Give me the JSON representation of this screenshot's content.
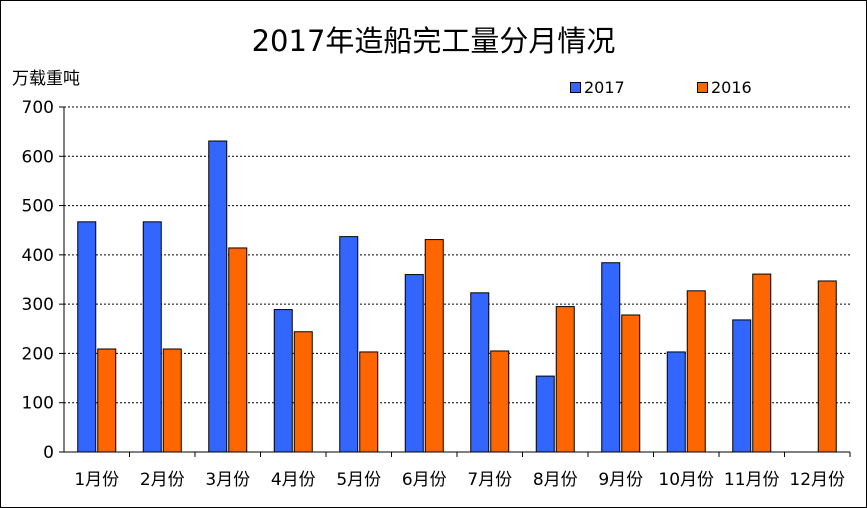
{
  "chart_data": {
    "type": "bar",
    "title": "2017年造船完工量分月情况",
    "ylabel": "万载重吨",
    "xlabel": "",
    "ylim": [
      0,
      700
    ],
    "yticks": [
      0,
      100,
      200,
      300,
      400,
      500,
      600,
      700
    ],
    "grid": true,
    "legend_position": "top-right",
    "categories": [
      "1月份",
      "2月份",
      "3月份",
      "4月份",
      "5月份",
      "6月份",
      "7月份",
      "8月份",
      "9月份",
      "10月份",
      "11月份",
      "12月份"
    ],
    "series": [
      {
        "name": "2017",
        "color": "#3366FF",
        "values": [
          467,
          467,
          631,
          289,
          437,
          360,
          323,
          154,
          384,
          203,
          268,
          null
        ]
      },
      {
        "name": "2016",
        "color": "#FF6600",
        "values": [
          209,
          209,
          414,
          244,
          203,
          431,
          205,
          295,
          278,
          327,
          361,
          347
        ]
      }
    ]
  }
}
